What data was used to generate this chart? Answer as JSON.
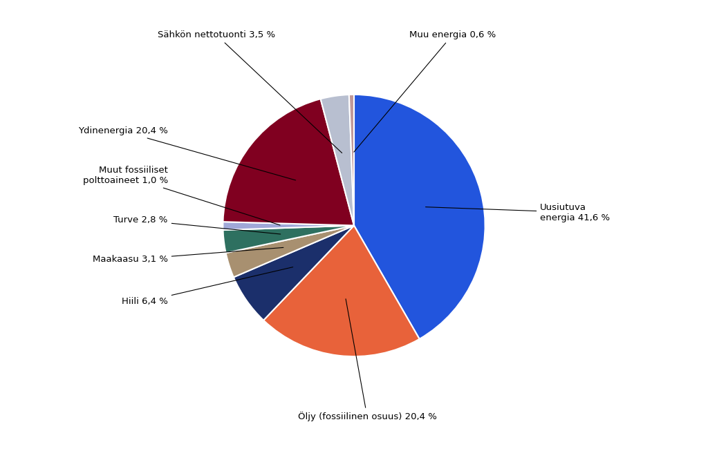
{
  "labels": [
    "Uusiutuva\nenergia 41,6 %",
    "Öljy (fossiilinen osuus) 20,4 %",
    "Hiili 6,4 %",
    "Maakaasu 3,1 %",
    "Turve 2,8 %",
    "Muut fossiiliset\npolttoaineet 1,0 %",
    "Ydinenergia 20,4 %",
    "Sähkön nettotuonti 3,5 %",
    "Muu energia 0,6 %"
  ],
  "values": [
    41.6,
    20.4,
    6.4,
    3.1,
    2.8,
    1.0,
    20.4,
    3.5,
    0.6
  ],
  "colors": [
    "#2255dd",
    "#e8623a",
    "#1b2f6b",
    "#a89070",
    "#2e7060",
    "#a0a8d8",
    "#800020",
    "#b8bfd0",
    "#c09898"
  ],
  "startangle": 90,
  "background_color": "#ffffff",
  "figsize": [
    10.24,
    6.53
  ],
  "dpi": 100,
  "label_configs": [
    [
      "Uusiutuva\nenergia 41,6 %",
      1.42,
      0.1,
      "left",
      "center"
    ],
    [
      "Öljy (fossiilinen osuus) 20,4 %",
      0.1,
      -1.42,
      "center",
      "top"
    ],
    [
      "Hiili 6,4 %",
      -1.42,
      -0.58,
      "right",
      "center"
    ],
    [
      "Maakaasu 3,1 %",
      -1.42,
      -0.26,
      "right",
      "center"
    ],
    [
      "Turve 2,8 %",
      -1.42,
      0.04,
      "right",
      "center"
    ],
    [
      "Muut fossiiliset\npolttoaineet 1,0 %",
      -1.42,
      0.38,
      "right",
      "center"
    ],
    [
      "Ydinenergia 20,4 %",
      -1.42,
      0.72,
      "right",
      "center"
    ],
    [
      "Sähkön nettotuonti 3,5 %",
      -0.6,
      1.42,
      "right",
      "bottom"
    ],
    [
      "Muu energia 0,6 %",
      0.42,
      1.42,
      "left",
      "bottom"
    ]
  ]
}
